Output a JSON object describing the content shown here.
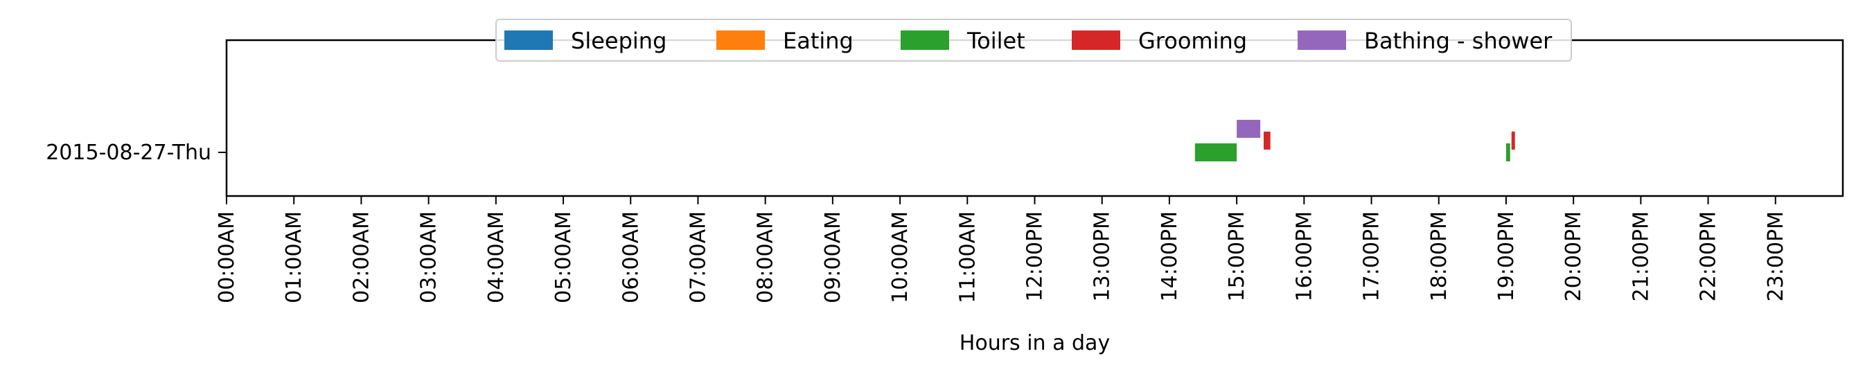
{
  "chart_data": {
    "type": "timeline",
    "xlabel": "Hours in a day",
    "x_ticks": [
      "00:00AM",
      "01:00AM",
      "02:00AM",
      "03:00AM",
      "04:00AM",
      "05:00AM",
      "06:00AM",
      "07:00AM",
      "08:00AM",
      "09:00AM",
      "10:00AM",
      "11:00AM",
      "12:00PM",
      "13:00PM",
      "14:00PM",
      "15:00PM",
      "16:00PM",
      "17:00PM",
      "18:00PM",
      "19:00PM",
      "20:00PM",
      "21:00PM",
      "22:00PM",
      "23:00PM"
    ],
    "xlim": [
      0,
      24
    ],
    "rows": [
      "2015-08-27-Thu"
    ],
    "grid": false,
    "legend_position": "top-center",
    "categories": [
      {
        "name": "Sleeping",
        "color": "#1f77b4"
      },
      {
        "name": "Eating",
        "color": "#ff7f0e"
      },
      {
        "name": "Toilet",
        "color": "#2ca02c"
      },
      {
        "name": "Grooming",
        "color": "#d62728"
      },
      {
        "name": "Bathing - shower",
        "color": "#9467bd"
      }
    ],
    "events": [
      {
        "row": "2015-08-27-Thu",
        "activity": "Toilet",
        "start": 14.38,
        "end": 15.0
      },
      {
        "row": "2015-08-27-Thu",
        "activity": "Bathing - shower",
        "start": 15.0,
        "end": 15.35
      },
      {
        "row": "2015-08-27-Thu",
        "activity": "Grooming",
        "start": 15.4,
        "end": 15.5
      },
      {
        "row": "2015-08-27-Thu",
        "activity": "Toilet",
        "start": 19.0,
        "end": 19.06
      },
      {
        "row": "2015-08-27-Thu",
        "activity": "Grooming",
        "start": 19.08,
        "end": 19.13
      }
    ]
  }
}
